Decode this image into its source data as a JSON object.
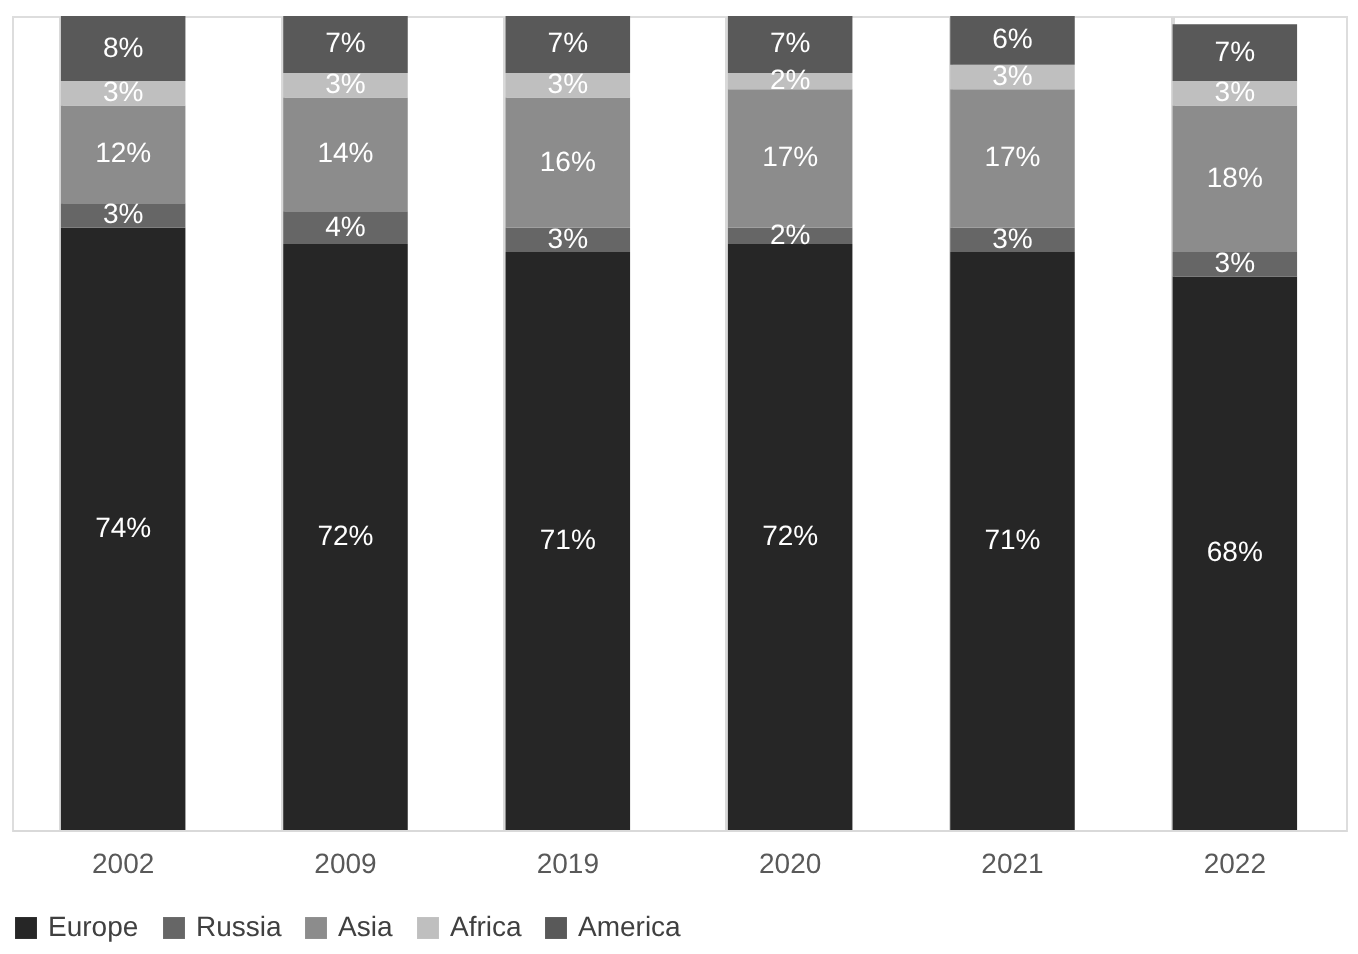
{
  "chart_data": {
    "type": "bar",
    "stacked": true,
    "categories": [
      "2002",
      "2009",
      "2019",
      "2020",
      "2021",
      "2022"
    ],
    "series": [
      {
        "name": "Europe",
        "color": "#262626",
        "values": [
          74,
          72,
          71,
          72,
          71,
          68
        ],
        "value_labels": [
          "74%",
          "72%",
          "71%",
          "72%",
          "71%",
          "68%"
        ]
      },
      {
        "name": "Russia",
        "color": "#666666",
        "values": [
          3,
          4,
          3,
          2,
          3,
          3
        ],
        "value_labels": [
          "3%",
          "4%",
          "3%",
          "2%",
          "3%",
          "3%"
        ]
      },
      {
        "name": "Asia",
        "color": "#8c8c8c",
        "values": [
          12,
          14,
          16,
          17,
          17,
          18
        ],
        "value_labels": [
          "12%",
          "14%",
          "16%",
          "17%",
          "17%",
          "18%"
        ]
      },
      {
        "name": "Africa",
        "color": "#bfbfbf",
        "values": [
          3,
          3,
          3,
          2,
          3,
          3
        ],
        "value_labels": [
          "3%",
          "3%",
          "3%",
          "2%",
          "3%",
          "3%"
        ]
      },
      {
        "name": "America",
        "color": "#595959",
        "values": [
          8,
          7,
          7,
          7,
          6,
          7
        ],
        "value_labels": [
          "8%",
          "7%",
          "7%",
          "7%",
          "6%",
          "7%"
        ]
      }
    ],
    "legend": "bottom",
    "grid": "x",
    "tick_labels": "x"
  }
}
